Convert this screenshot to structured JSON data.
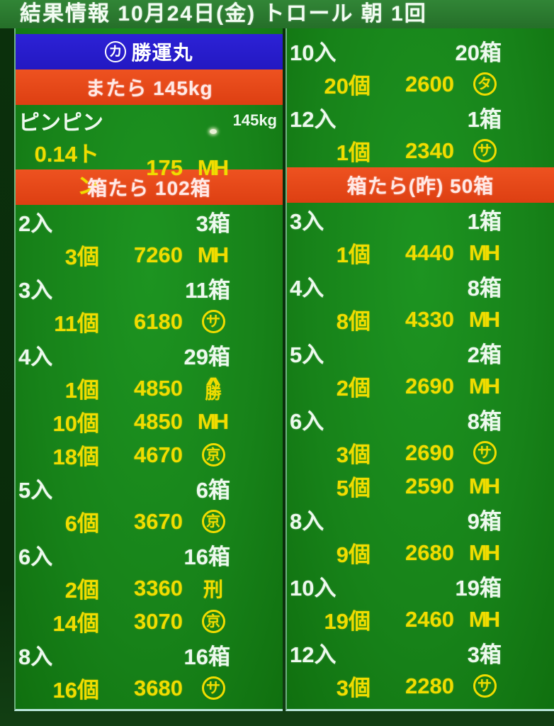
{
  "header": {
    "title": "結果情報  10月24日(金)  トロール  朝  1回"
  },
  "colors": {
    "panel_green": "#178219",
    "header_green": "#2b7c30",
    "banner_blue": "#2318c2",
    "banner_red": "#e8481c",
    "text_white": "#edf9ee",
    "text_yellow": "#f0dc00",
    "edge_line_cyan": "#b9e6da"
  },
  "left": {
    "boat": {
      "circle_mark": "カ",
      "name": "勝運丸"
    },
    "species_banner": "またら 145kg",
    "fresh": {
      "label": "ピンピン",
      "weight": "145kg",
      "sale": {
        "qty": "0.14トン",
        "price": "175",
        "mark": {
          "shape": "mh",
          "text": "MH"
        }
      }
    },
    "box_banner": "箱たら 102箱",
    "groups": [
      {
        "size": "2入",
        "boxes": "3箱",
        "sales": [
          {
            "count": "3個",
            "price": "7260",
            "mark": {
              "shape": "mh",
              "text": "MH"
            }
          }
        ]
      },
      {
        "size": "3入",
        "boxes": "11箱",
        "sales": [
          {
            "count": "11個",
            "price": "6180",
            "mark": {
              "shape": "circle",
              "text": "サ"
            }
          }
        ]
      },
      {
        "size": "4入",
        "boxes": "29箱",
        "sales": [
          {
            "count": "1個",
            "price": "4850",
            "mark": {
              "shape": "roof",
              "text": "勝"
            }
          },
          {
            "count": "10個",
            "price": "4850",
            "mark": {
              "shape": "mh",
              "text": "MH"
            }
          },
          {
            "count": "18個",
            "price": "4670",
            "mark": {
              "shape": "circle",
              "text": "京"
            }
          }
        ]
      },
      {
        "size": "5入",
        "boxes": "6箱",
        "sales": [
          {
            "count": "6個",
            "price": "3670",
            "mark": {
              "shape": "circle",
              "text": "京"
            }
          }
        ]
      },
      {
        "size": "6入",
        "boxes": "16箱",
        "sales": [
          {
            "count": "2個",
            "price": "3360",
            "mark": {
              "shape": "plain",
              "text": "刑"
            }
          },
          {
            "count": "14個",
            "price": "3070",
            "mark": {
              "shape": "circle",
              "text": "京"
            }
          }
        ]
      },
      {
        "size": "8入",
        "boxes": "16箱",
        "sales": [
          {
            "count": "16個",
            "price": "3680",
            "mark": {
              "shape": "circle",
              "text": "サ"
            }
          }
        ]
      }
    ]
  },
  "right": {
    "top_groups": [
      {
        "size": "10入",
        "boxes": "20箱",
        "sales": [
          {
            "count": "20個",
            "price": "2600",
            "mark": {
              "shape": "circle",
              "text": "タ"
            }
          }
        ]
      },
      {
        "size": "12入",
        "boxes": "1箱",
        "sales": [
          {
            "count": "1個",
            "price": "2340",
            "mark": {
              "shape": "circle",
              "text": "サ"
            }
          }
        ]
      }
    ],
    "box_banner": "箱たら(昨) 50箱",
    "groups": [
      {
        "size": "3入",
        "boxes": "1箱",
        "sales": [
          {
            "count": "1個",
            "price": "4440",
            "mark": {
              "shape": "mh",
              "text": "MH"
            }
          }
        ]
      },
      {
        "size": "4入",
        "boxes": "8箱",
        "sales": [
          {
            "count": "8個",
            "price": "4330",
            "mark": {
              "shape": "mh",
              "text": "MH"
            }
          }
        ]
      },
      {
        "size": "5入",
        "boxes": "2箱",
        "sales": [
          {
            "count": "2個",
            "price": "2690",
            "mark": {
              "shape": "mh",
              "text": "MH"
            }
          }
        ]
      },
      {
        "size": "6入",
        "boxes": "8箱",
        "sales": [
          {
            "count": "3個",
            "price": "2690",
            "mark": {
              "shape": "circle",
              "text": "サ"
            }
          },
          {
            "count": "5個",
            "price": "2590",
            "mark": {
              "shape": "mh",
              "text": "MH"
            }
          }
        ]
      },
      {
        "size": "8入",
        "boxes": "9箱",
        "sales": [
          {
            "count": "9個",
            "price": "2680",
            "mark": {
              "shape": "mh",
              "text": "MH"
            }
          }
        ]
      },
      {
        "size": "10入",
        "boxes": "19箱",
        "sales": [
          {
            "count": "19個",
            "price": "2460",
            "mark": {
              "shape": "mh",
              "text": "MH"
            }
          }
        ]
      },
      {
        "size": "12入",
        "boxes": "3箱",
        "sales": [
          {
            "count": "3個",
            "price": "2280",
            "mark": {
              "shape": "circle",
              "text": "サ"
            }
          }
        ]
      }
    ]
  }
}
